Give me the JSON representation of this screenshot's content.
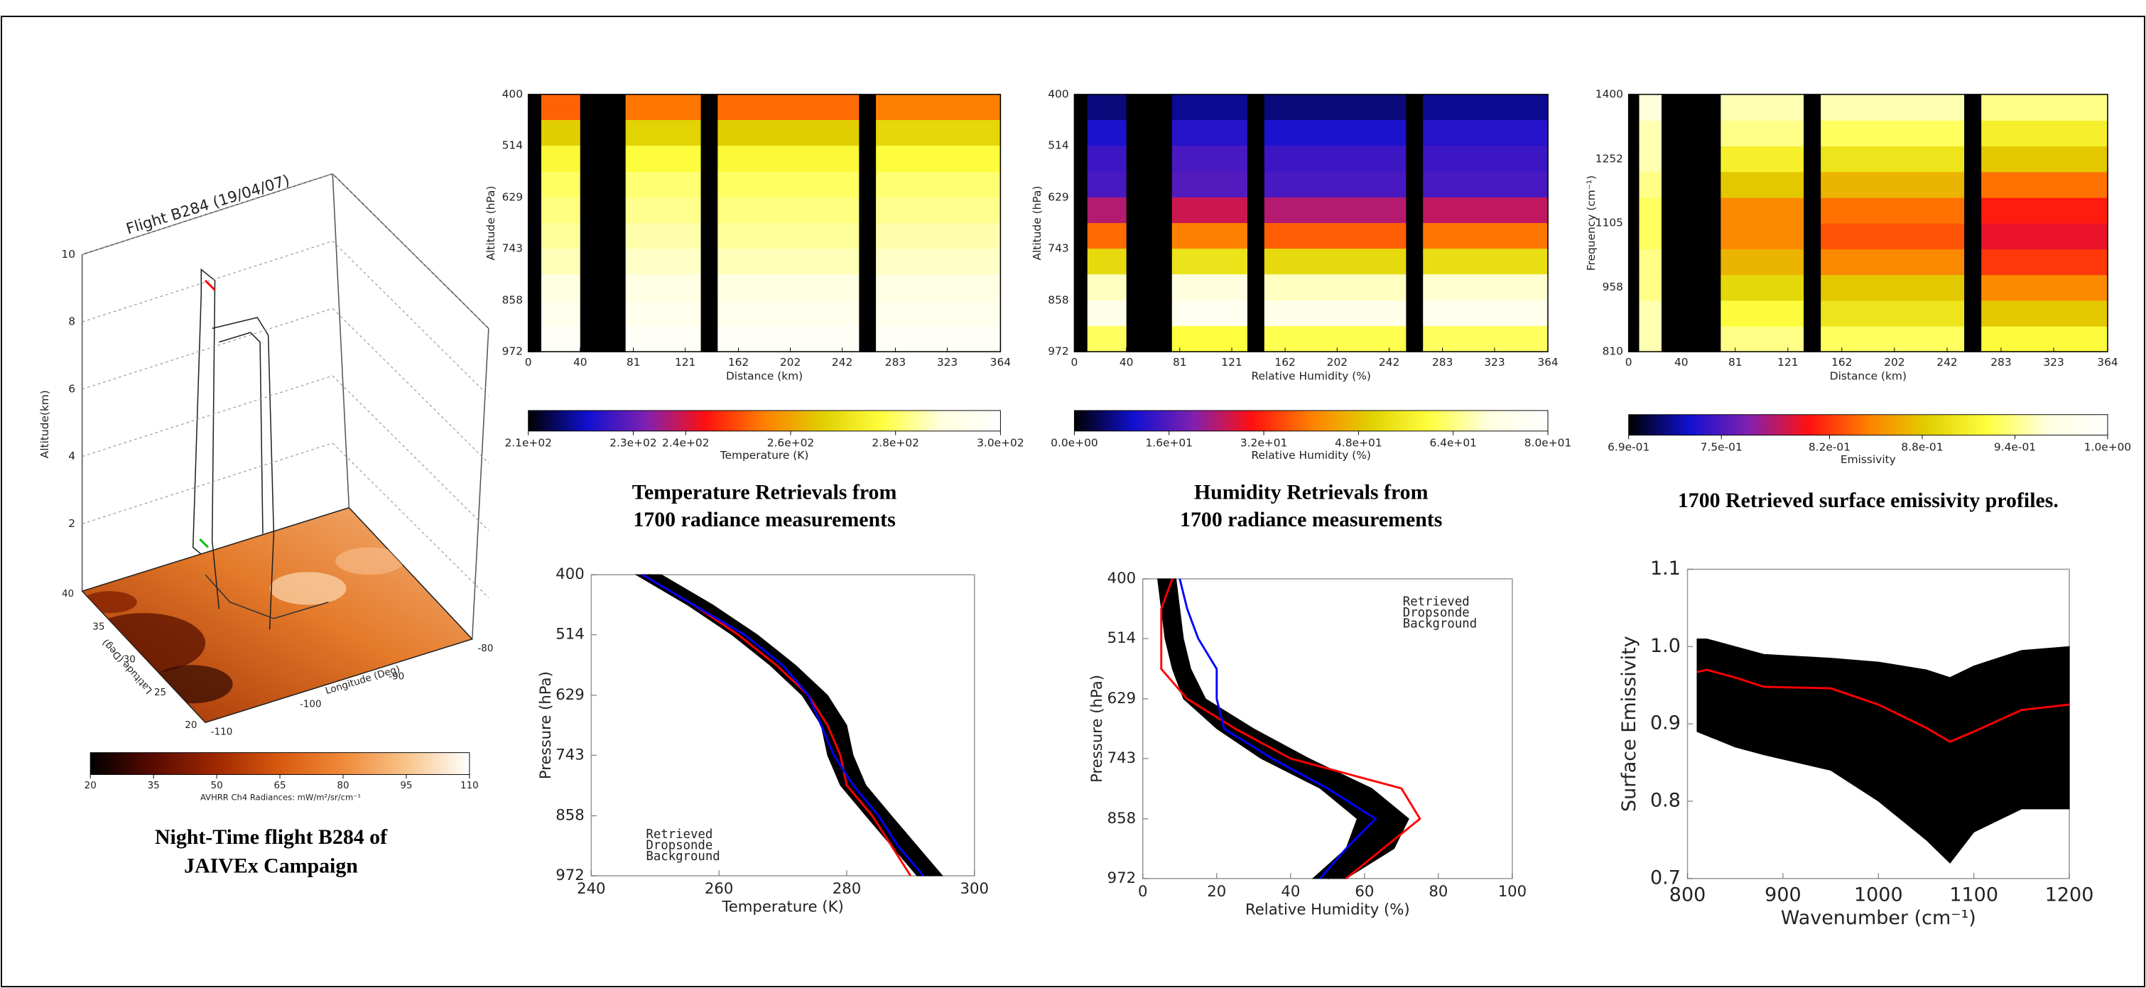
{
  "chart_data": [
    {
      "type": "flight3d",
      "title": "Flight B284 (19/04/07)",
      "zlabel": "Altitude(km)",
      "zlim": [
        0,
        10
      ],
      "zticks": [
        2,
        4,
        6,
        8,
        10
      ],
      "ylabel": "Latitude (Deg)",
      "ylim": [
        20,
        40
      ],
      "yticks": [
        20,
        25,
        30,
        35,
        40
      ],
      "xlabel": "Longitude (Deg)",
      "xlim": [
        -110,
        -80
      ],
      "xticks": [
        -110,
        -100,
        -90,
        -80
      ],
      "colormap": [
        "#000000",
        "#5a0a00",
        "#a02800",
        "#d85a10",
        "#f08a3a",
        "#f8c48a",
        "#ffffff"
      ],
      "clim": [
        20,
        110
      ],
      "cticks": [
        20,
        35,
        50,
        65,
        80,
        95,
        110
      ],
      "clabel": "AVHRR Ch4 Radiances: mW/m²/sr/cm⁻¹",
      "caption": [
        "Night-Time flight B284 of",
        "JAIVEx Campaign"
      ]
    },
    {
      "type": "heatmap",
      "ylabel": "Altitude (hPa)",
      "xlabel": "Distance (km)",
      "xlim": [
        0,
        364
      ],
      "xticks": [
        0,
        40,
        81,
        121,
        162,
        202,
        242,
        283,
        323,
        364
      ],
      "ylim": [
        972,
        400
      ],
      "yticks": [
        400,
        514,
        629,
        743,
        858,
        972
      ],
      "xbins": [
        0,
        10,
        40,
        75,
        133,
        146,
        255,
        268,
        364
      ],
      "ybins": [
        400,
        457,
        514,
        572,
        629,
        686,
        743,
        800,
        858,
        915,
        972
      ],
      "z": [
        [
          null,
          252,
          null,
          254,
          null,
          253,
          null,
          255
        ],
        [
          null,
          266,
          null,
          267,
          null,
          266,
          null,
          268
        ],
        [
          null,
          276,
          null,
          277,
          null,
          276,
          null,
          277
        ],
        [
          null,
          280,
          null,
          281,
          null,
          280,
          null,
          281
        ],
        [
          null,
          282,
          null,
          283,
          null,
          282,
          null,
          283
        ],
        [
          null,
          284,
          null,
          285,
          null,
          284,
          null,
          285
        ],
        [
          null,
          286,
          null,
          287,
          null,
          286,
          null,
          287
        ],
        [
          null,
          289,
          null,
          290,
          null,
          289,
          null,
          290
        ],
        [
          null,
          293,
          null,
          293,
          null,
          293,
          null,
          293
        ],
        [
          null,
          297,
          null,
          297,
          null,
          297,
          null,
          297
        ]
      ],
      "colormap": [
        "#000000",
        "#1010d0",
        "#8020b0",
        "#ff1010",
        "#ff8000",
        "#e0d000",
        "#ffff40",
        "#ffffe0",
        "#ffffff"
      ],
      "zlim": [
        210,
        300
      ],
      "zticks": [
        {
          "value": 210,
          "label": "2.1e+02"
        },
        {
          "value": 230,
          "label": "2.3e+02"
        },
        {
          "value": 240,
          "label": "2.4e+02"
        },
        {
          "value": 260,
          "label": "2.6e+02"
        },
        {
          "value": 280,
          "label": "2.8e+02"
        },
        {
          "value": 300,
          "label": "3.0e+02"
        }
      ],
      "zlabel": "Temperature (K)",
      "caption": [
        "Temperature Retrievals from",
        "1700 radiance measurements"
      ]
    },
    {
      "type": "heatmap",
      "ylabel": "Altitude (hPa)",
      "xlabel": "Relative Humidity (%)",
      "xlim": [
        0,
        364
      ],
      "xticks": [
        0,
        40,
        81,
        121,
        162,
        202,
        242,
        283,
        323,
        364
      ],
      "ylim": [
        972,
        400
      ],
      "yticks": [
        400,
        514,
        629,
        743,
        858,
        972
      ],
      "xbins": [
        0,
        10,
        40,
        75,
        133,
        146,
        255,
        268,
        364
      ],
      "ybins": [
        400,
        457,
        514,
        572,
        629,
        686,
        743,
        800,
        858,
        915,
        972
      ],
      "z": [
        [
          null,
          6,
          null,
          7,
          null,
          6,
          null,
          7
        ],
        [
          null,
          11,
          null,
          12,
          null,
          11,
          null,
          12
        ],
        [
          null,
          14,
          null,
          15,
          null,
          14,
          null,
          14
        ],
        [
          null,
          15,
          null,
          16,
          null,
          15,
          null,
          15
        ],
        [
          null,
          24,
          null,
          26,
          null,
          24,
          null,
          25
        ],
        [
          null,
          38,
          null,
          40,
          null,
          37,
          null,
          39
        ],
        [
          null,
          52,
          null,
          54,
          null,
          52,
          null,
          53
        ],
        [
          null,
          68,
          null,
          70,
          null,
          68,
          null,
          69
        ],
        [
          null,
          73,
          null,
          75,
          null,
          73,
          null,
          74
        ],
        [
          null,
          62,
          null,
          60,
          null,
          61,
          null,
          62
        ]
      ],
      "colormap": [
        "#000000",
        "#1010d0",
        "#8020b0",
        "#ff1010",
        "#ff8000",
        "#e0d000",
        "#ffff40",
        "#ffffe0",
        "#ffffff"
      ],
      "zlim": [
        0,
        80
      ],
      "zticks": [
        {
          "value": 0,
          "label": "0.0e+00"
        },
        {
          "value": 16,
          "label": "1.6e+01"
        },
        {
          "value": 32,
          "label": "3.2e+01"
        },
        {
          "value": 48,
          "label": "4.8e+01"
        },
        {
          "value": 64,
          "label": "6.4e+01"
        },
        {
          "value": 80,
          "label": "8.0e+01"
        }
      ],
      "zlabel": "Relative Humidity (%)",
      "caption": [
        "Humidity Retrievals from",
        "1700 radiance measurements"
      ]
    },
    {
      "type": "heatmap",
      "ylabel": "Frequency (cm⁻¹)",
      "xlabel": "Distance (km)",
      "xlim": [
        0,
        364
      ],
      "xticks": [
        0,
        40,
        81,
        121,
        162,
        202,
        242,
        283,
        323,
        364
      ],
      "ylim": [
        810,
        1400
      ],
      "yticks": [
        810,
        958,
        1105,
        1252,
        1400
      ],
      "xbins": [
        0,
        8,
        25,
        70,
        133,
        146,
        255,
        268,
        364
      ],
      "ybins": [
        810,
        869,
        928,
        987,
        1046,
        1105,
        1164,
        1223,
        1282,
        1341,
        1400
      ],
      "z": [
        [
          null,
          0.95,
          null,
          0.94,
          null,
          0.93,
          null,
          0.92
        ],
        [
          null,
          0.95,
          null,
          0.92,
          null,
          0.9,
          null,
          0.88
        ],
        [
          null,
          0.94,
          null,
          0.89,
          null,
          0.88,
          null,
          0.85
        ],
        [
          null,
          0.94,
          null,
          0.87,
          null,
          0.85,
          null,
          0.82
        ],
        [
          null,
          0.93,
          null,
          0.85,
          null,
          0.83,
          null,
          0.8
        ],
        [
          null,
          0.93,
          null,
          0.85,
          null,
          0.84,
          null,
          0.81
        ],
        [
          null,
          0.94,
          null,
          0.88,
          null,
          0.87,
          null,
          0.84
        ],
        [
          null,
          0.95,
          null,
          0.91,
          null,
          0.9,
          null,
          0.88
        ],
        [
          null,
          0.95,
          null,
          0.94,
          null,
          0.93,
          null,
          0.91
        ],
        [
          null,
          0.96,
          null,
          0.95,
          null,
          0.95,
          null,
          0.94
        ]
      ],
      "colormap": [
        "#000000",
        "#1010d0",
        "#8020b0",
        "#ff1010",
        "#ff8000",
        "#e0d000",
        "#ffff40",
        "#ffffe0",
        "#ffffff"
      ],
      "zlim": [
        0.69,
        1.0
      ],
      "zticks": [
        {
          "value": 0.69,
          "label": "6.9e-01"
        },
        {
          "value": 0.75,
          "label": "7.5e-01"
        },
        {
          "value": 0.82,
          "label": "8.2e-01"
        },
        {
          "value": 0.88,
          "label": "8.8e-01"
        },
        {
          "value": 0.94,
          "label": "9.4e-01"
        },
        {
          "value": 1.0,
          "label": "1.0e+00"
        }
      ],
      "zlabel": "Emissivity",
      "caption": [
        "1700  Retrieved surface emissivity profiles."
      ]
    },
    {
      "type": "profile",
      "xlabel": "Temperature (K)",
      "ylabel": "Pressure (hPa)",
      "xlim": [
        240,
        300
      ],
      "xticks": [
        240,
        260,
        280,
        300
      ],
      "ylim": [
        972,
        400
      ],
      "yticks": [
        400,
        514,
        629,
        743,
        858,
        972
      ],
      "levels": [
        400,
        457,
        514,
        572,
        629,
        686,
        743,
        800,
        858,
        915,
        972
      ],
      "band": {
        "color": "#000000",
        "lower": [
          247,
          255,
          262,
          268,
          273,
          276,
          277,
          279,
          283,
          287,
          291
        ],
        "upper": [
          251,
          259,
          266,
          272,
          277,
          280,
          281,
          283,
          287,
          291,
          295
        ]
      },
      "series": [
        {
          "name": "Retrieved",
          "color": "#000000",
          "values": [
            249,
            257,
            264,
            270,
            275,
            278,
            279,
            281,
            285,
            289,
            293
          ]
        },
        {
          "name": "Dropsonde",
          "color": "#ff0000",
          "values": [
            248,
            256,
            263,
            269,
            274,
            277,
            279,
            280,
            284,
            287,
            290
          ]
        },
        {
          "name": "Background",
          "color": "#0000ff",
          "values": [
            248,
            256,
            264,
            270,
            274,
            276,
            278,
            281,
            285,
            288,
            292
          ]
        }
      ],
      "legend": "lower left"
    },
    {
      "type": "profile",
      "xlabel": "Relative Humidity (%)",
      "ylabel": "Pressure (hPa)",
      "xlim": [
        0,
        100
      ],
      "xticks": [
        0,
        20,
        40,
        60,
        80,
        100
      ],
      "ylim": [
        972,
        400
      ],
      "yticks": [
        400,
        514,
        629,
        743,
        858,
        972
      ],
      "levels": [
        400,
        457,
        514,
        572,
        629,
        686,
        743,
        800,
        858,
        915,
        972
      ],
      "band": {
        "color": "#000000",
        "lower": [
          4,
          5,
          6,
          8,
          11,
          20,
          32,
          48,
          58,
          55,
          46
        ],
        "upper": [
          9,
          10,
          11,
          13,
          17,
          30,
          45,
          62,
          72,
          68,
          55
        ]
      },
      "series": [
        {
          "name": "Retrieved",
          "color": "#000000",
          "values": [
            7,
            7,
            8,
            10,
            14,
            25,
            38,
            55,
            65,
            62,
            50
          ]
        },
        {
          "name": "Dropsonde",
          "color": "#ff0000",
          "values": [
            8,
            5,
            5,
            5,
            12,
            25,
            40,
            70,
            75,
            65,
            55
          ]
        },
        {
          "name": "Background",
          "color": "#0000ff",
          "values": [
            10,
            12,
            15,
            20,
            20,
            22,
            35,
            50,
            63,
            55,
            48
          ]
        }
      ],
      "legend": "upper right"
    },
    {
      "type": "line",
      "xlabel": "Wavenumber (cm⁻¹)",
      "ylabel": "Surface Emissivity",
      "xlim": [
        800,
        1200
      ],
      "xticks": [
        800,
        900,
        1000,
        1100,
        1200
      ],
      "ylim": [
        0.7,
        1.1
      ],
      "yticks": [
        0.7,
        0.8,
        0.9,
        {
          "value": 1,
          "label": "1.0"
        },
        1.1
      ],
      "x": [
        810,
        820,
        850,
        880,
        950,
        1000,
        1050,
        1075,
        1100,
        1150,
        1200
      ],
      "band": {
        "color": "#000000",
        "upper": [
          1.01,
          1.01,
          1.0,
          0.99,
          0.985,
          0.98,
          0.97,
          0.96,
          0.975,
          0.995,
          1.0
        ],
        "lower": [
          0.89,
          0.885,
          0.87,
          0.86,
          0.84,
          0.8,
          0.75,
          0.72,
          0.76,
          0.79,
          0.79
        ]
      },
      "series": [
        {
          "color": "#ff0000",
          "values": [
            0.967,
            0.97,
            0.96,
            0.948,
            0.946,
            0.925,
            0.895,
            0.877,
            0.89,
            0.918,
            0.925
          ]
        }
      ]
    }
  ]
}
